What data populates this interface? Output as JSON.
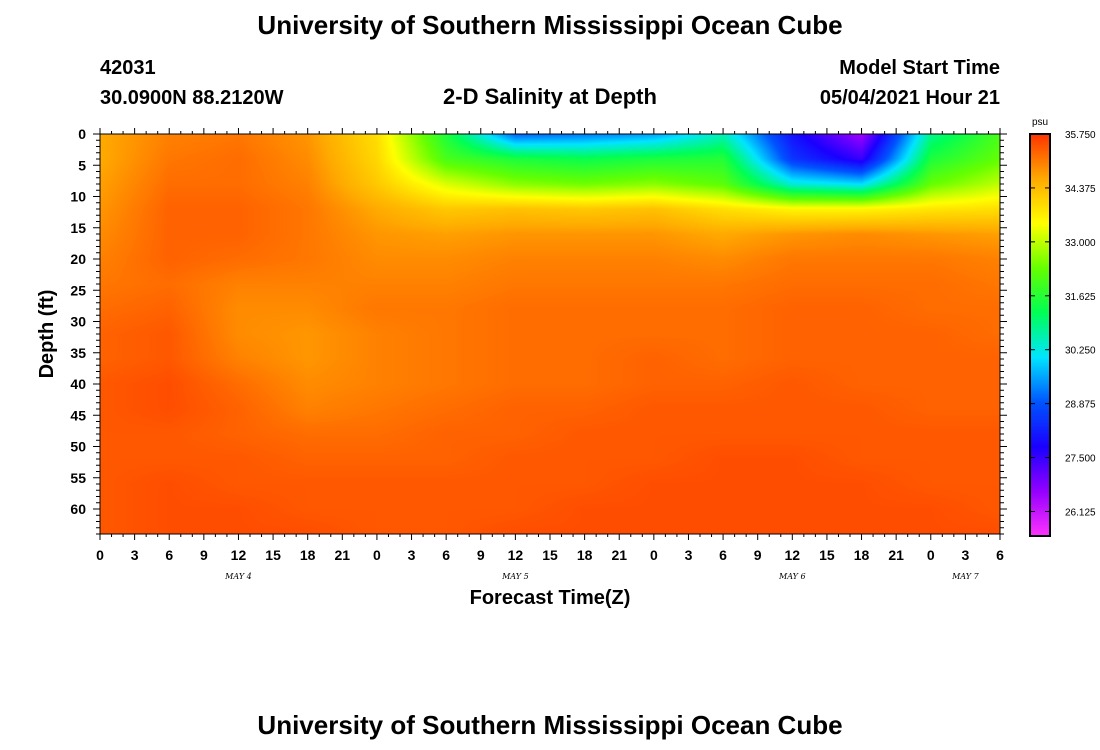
{
  "page": {
    "title_top": "University of Southern Mississippi Ocean Cube",
    "title_bottom": "University of Southern Mississippi Ocean Cube",
    "station_id": "42031",
    "station_coords": "30.0900N  88.2120W",
    "plot_title": "2-D Salinity at Depth",
    "model_start_label": "Model Start Time",
    "model_start_value": "05/04/2021 Hour 21"
  },
  "colors": {
    "background": "#ffffff",
    "text": "#000000",
    "scale_stops": [
      "#ff33ff",
      "#9400ff",
      "#1a00ff",
      "#0055ff",
      "#00e5ff",
      "#00ff55",
      "#66ff00",
      "#ffff00",
      "#ffaa00",
      "#ff3300"
    ]
  },
  "chart_data": {
    "type": "heatmap",
    "title": "2-D Salinity at Depth",
    "xlabel": "Forecast Time(Z)",
    "ylabel": "Depth (ft)",
    "x_tick_labels": [
      "0",
      "3",
      "6",
      "9",
      "12",
      "15",
      "18",
      "21",
      "0",
      "3",
      "6",
      "9",
      "12",
      "15",
      "18",
      "21",
      "0",
      "3",
      "6",
      "9",
      "12",
      "15",
      "18",
      "21",
      "0",
      "3",
      "6"
    ],
    "x_date_labels": [
      {
        "text": "MAY 4",
        "tick_index": 4
      },
      {
        "text": "MAY 5",
        "tick_index": 12
      },
      {
        "text": "MAY 6",
        "tick_index": 20
      },
      {
        "text": "MAY 7",
        "tick_index": 25
      }
    ],
    "x_range_hours": [
      0,
      78
    ],
    "y_tick_labels": [
      "0",
      "5",
      "10",
      "15",
      "20",
      "25",
      "30",
      "35",
      "40",
      "45",
      "50",
      "55",
      "60"
    ],
    "y_range_ft": [
      0,
      64
    ],
    "y_inverted": true,
    "colorbar": {
      "unit": "psu",
      "min": 25.5,
      "max": 35.75,
      "labels": [
        "35.750",
        "34.375",
        "33.000",
        "31.625",
        "30.250",
        "28.875",
        "27.500",
        "26.125"
      ]
    },
    "grid_hours": [
      0,
      6,
      12,
      18,
      24,
      30,
      36,
      42,
      48,
      54,
      60,
      66,
      72,
      78
    ],
    "grid_depths_ft": [
      0,
      4,
      8,
      12,
      16,
      20,
      24,
      28,
      32,
      36,
      40,
      44,
      48,
      52,
      56,
      60,
      64
    ],
    "salinity_grid_psu": [
      [
        34.6,
        35.0,
        35.1,
        34.8,
        33.9,
        31.5,
        29.0,
        29.2,
        29.5,
        30.5,
        28.0,
        26.5,
        30.8,
        32.0
      ],
      [
        34.6,
        35.1,
        35.2,
        34.9,
        34.0,
        32.0,
        31.5,
        31.3,
        31.5,
        31.6,
        28.5,
        27.5,
        31.5,
        32.3
      ],
      [
        34.7,
        35.2,
        35.2,
        35.0,
        34.2,
        33.2,
        32.6,
        32.4,
        32.6,
        32.2,
        30.3,
        30.0,
        32.3,
        33.0
      ],
      [
        34.8,
        35.3,
        35.3,
        35.1,
        34.6,
        34.2,
        34.3,
        34.2,
        34.3,
        33.9,
        33.6,
        33.6,
        33.8,
        33.9
      ],
      [
        34.9,
        35.3,
        35.3,
        35.1,
        34.8,
        34.7,
        34.8,
        34.8,
        34.8,
        34.6,
        34.8,
        34.9,
        34.8,
        34.7
      ],
      [
        35.0,
        35.3,
        35.2,
        35.1,
        34.9,
        34.9,
        35.0,
        35.0,
        35.0,
        34.9,
        35.1,
        35.1,
        35.1,
        35.0
      ],
      [
        35.1,
        35.2,
        35.0,
        35.0,
        35.0,
        35.0,
        35.1,
        35.1,
        35.1,
        35.1,
        35.2,
        35.2,
        35.2,
        35.1
      ],
      [
        35.2,
        35.3,
        34.9,
        34.9,
        35.1,
        35.1,
        35.2,
        35.2,
        35.2,
        35.2,
        35.3,
        35.3,
        35.2,
        35.2
      ],
      [
        35.3,
        35.4,
        34.9,
        34.8,
        35.0,
        35.1,
        35.2,
        35.2,
        35.2,
        35.2,
        35.3,
        35.3,
        35.3,
        35.2
      ],
      [
        35.3,
        35.4,
        35.0,
        34.8,
        35.0,
        35.1,
        35.2,
        35.2,
        35.3,
        35.2,
        35.3,
        35.3,
        35.3,
        35.3
      ],
      [
        35.4,
        35.5,
        35.2,
        34.9,
        35.0,
        35.1,
        35.2,
        35.2,
        35.3,
        35.3,
        35.4,
        35.3,
        35.3,
        35.3
      ],
      [
        35.4,
        35.5,
        35.3,
        35.0,
        35.1,
        35.2,
        35.3,
        35.3,
        35.4,
        35.4,
        35.4,
        35.4,
        35.3,
        35.3
      ],
      [
        35.4,
        35.4,
        35.3,
        35.2,
        35.2,
        35.3,
        35.3,
        35.4,
        35.4,
        35.4,
        35.4,
        35.4,
        35.4,
        35.4
      ],
      [
        35.4,
        35.4,
        35.4,
        35.3,
        35.3,
        35.3,
        35.4,
        35.4,
        35.4,
        35.5,
        35.5,
        35.4,
        35.4,
        35.4
      ],
      [
        35.4,
        35.5,
        35.4,
        35.4,
        35.4,
        35.4,
        35.4,
        35.4,
        35.5,
        35.5,
        35.5,
        35.5,
        35.4,
        35.4
      ],
      [
        35.4,
        35.5,
        35.5,
        35.4,
        35.4,
        35.4,
        35.4,
        35.5,
        35.5,
        35.5,
        35.5,
        35.5,
        35.5,
        35.4
      ],
      [
        35.4,
        35.5,
        35.5,
        35.5,
        35.4,
        35.4,
        35.5,
        35.5,
        35.5,
        35.5,
        35.5,
        35.5,
        35.5,
        35.5
      ]
    ]
  }
}
